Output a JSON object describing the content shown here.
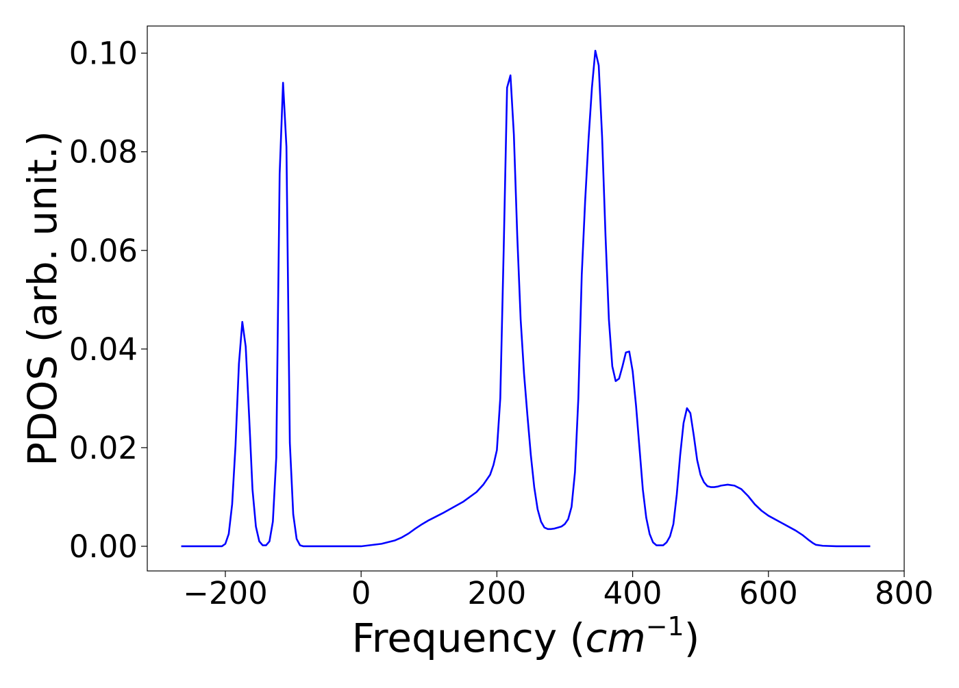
{
  "chart_data": {
    "type": "line",
    "title": "",
    "xlabel_main": "Frequency (",
    "xlabel_unit_base": "cm",
    "xlabel_unit_exp": "−1",
    "xlabel_close": ")",
    "ylabel": "PDOS (arb. unit.)",
    "xlim": [
      -315,
      800
    ],
    "ylim": [
      -0.005,
      0.1055
    ],
    "xticks": [
      -200,
      0,
      200,
      400,
      600,
      800
    ],
    "xtick_labels": [
      "−200",
      "0",
      "200",
      "400",
      "600",
      "800"
    ],
    "yticks": [
      0.0,
      0.02,
      0.04,
      0.06,
      0.08,
      0.1
    ],
    "ytick_labels": [
      "0.00",
      "0.02",
      "0.04",
      "0.06",
      "0.08",
      "0.10"
    ],
    "grid": false,
    "legend": "none",
    "colors": {
      "line": "#0000ff",
      "axes": "#000000",
      "background": "#ffffff"
    },
    "series": [
      {
        "x": [
          -265,
          -240,
          -215,
          -205,
          -200,
          -195,
          -190,
          -185,
          -180,
          -175,
          -170,
          -165,
          -160,
          -155,
          -150,
          -145,
          -140,
          -135,
          -130,
          -125,
          -120,
          -115,
          -110,
          -105,
          -100,
          -95,
          -90,
          -85,
          -80,
          -75,
          -50,
          0,
          30,
          50,
          60,
          70,
          80,
          90,
          100,
          120,
          150,
          170,
          180,
          190,
          195,
          200,
          205,
          210,
          215,
          220,
          225,
          230,
          235,
          240,
          245,
          250,
          255,
          260,
          265,
          270,
          275,
          280,
          285,
          290,
          295,
          300,
          305,
          310,
          315,
          320,
          325,
          330,
          335,
          340,
          345,
          350,
          355,
          360,
          365,
          370,
          375,
          380,
          385,
          390,
          395,
          400,
          405,
          410,
          415,
          420,
          425,
          430,
          435,
          440,
          445,
          450,
          455,
          460,
          465,
          470,
          475,
          480,
          485,
          490,
          495,
          500,
          505,
          510,
          515,
          520,
          525,
          530,
          540,
          550,
          560,
          570,
          580,
          590,
          600,
          620,
          640,
          650,
          660,
          665,
          670,
          680,
          700,
          750
        ],
        "y": [
          0.0,
          0.0,
          0.0,
          0.0,
          0.0005,
          0.0025,
          0.0085,
          0.0205,
          0.037,
          0.0455,
          0.0405,
          0.0265,
          0.0115,
          0.004,
          0.001,
          0.0002,
          0.0002,
          0.001,
          0.005,
          0.018,
          0.0755,
          0.094,
          0.081,
          0.021,
          0.0065,
          0.0015,
          0.0002,
          0.0,
          0.0,
          0.0,
          0.0,
          0.0,
          0.0005,
          0.0012,
          0.0018,
          0.0026,
          0.0036,
          0.0045,
          0.0053,
          0.0067,
          0.009,
          0.011,
          0.0125,
          0.0145,
          0.0165,
          0.0195,
          0.03,
          0.06,
          0.093,
          0.0955,
          0.0835,
          0.063,
          0.046,
          0.035,
          0.0265,
          0.0185,
          0.012,
          0.0075,
          0.005,
          0.0038,
          0.0035,
          0.0035,
          0.0036,
          0.0038,
          0.004,
          0.0045,
          0.0055,
          0.008,
          0.015,
          0.03,
          0.055,
          0.07,
          0.0825,
          0.093,
          0.1005,
          0.0975,
          0.083,
          0.063,
          0.046,
          0.0365,
          0.0335,
          0.034,
          0.0365,
          0.0393,
          0.0395,
          0.0355,
          0.0285,
          0.02,
          0.0115,
          0.0058,
          0.0025,
          0.0008,
          0.0002,
          0.0002,
          0.0002,
          0.0008,
          0.002,
          0.0045,
          0.0105,
          0.0185,
          0.025,
          0.028,
          0.027,
          0.0225,
          0.0175,
          0.0145,
          0.013,
          0.0122,
          0.012,
          0.012,
          0.0121,
          0.0123,
          0.0125,
          0.0123,
          0.0116,
          0.0102,
          0.0085,
          0.0072,
          0.0062,
          0.0047,
          0.0032,
          0.0023,
          0.0012,
          0.0007,
          0.0003,
          0.0001,
          0.0,
          0.0
        ]
      }
    ]
  }
}
